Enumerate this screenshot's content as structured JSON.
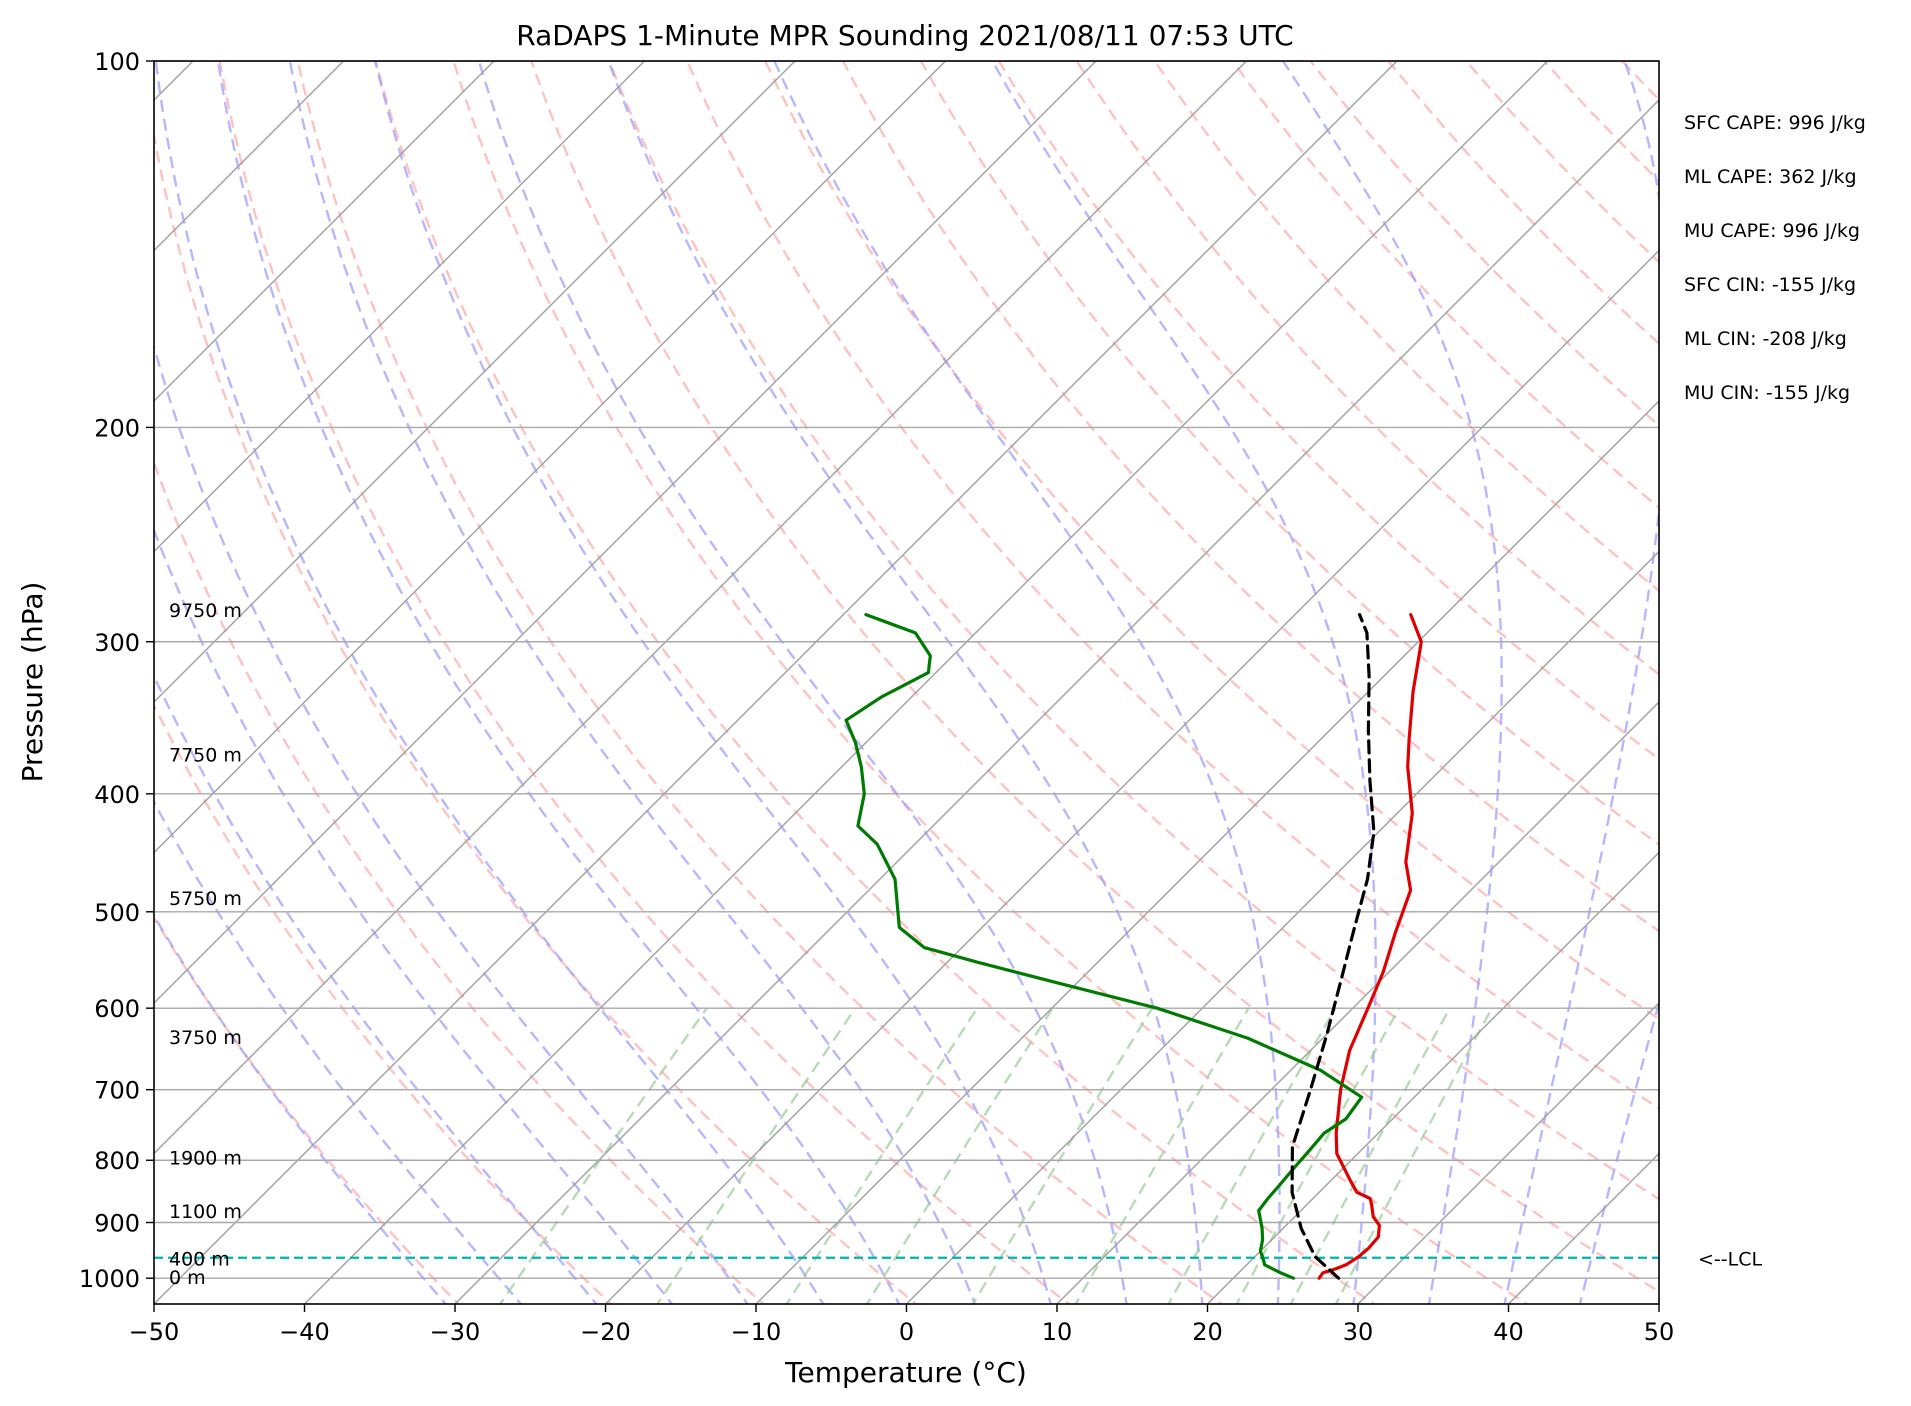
{
  "chart_data": {
    "type": "line",
    "title": "RaDAPS 1-Minute MPR Sounding 2021/08/11 07:53 UTC",
    "xlabel": "Temperature (°C)",
    "ylabel": "Pressure (hPa)",
    "xlim": [
      -50,
      50
    ],
    "ylim": [
      1050,
      100
    ],
    "y_scale": "log",
    "x_ticks": [
      {
        "value": -50,
        "label": "−50"
      },
      {
        "value": -40,
        "label": "−40"
      },
      {
        "value": -30,
        "label": "−30"
      },
      {
        "value": -20,
        "label": "−20"
      },
      {
        "value": -10,
        "label": "−10"
      },
      {
        "value": 0,
        "label": "0"
      },
      {
        "value": 10,
        "label": "10"
      },
      {
        "value": 20,
        "label": "20"
      },
      {
        "value": 30,
        "label": "30"
      },
      {
        "value": 40,
        "label": "40"
      },
      {
        "value": 50,
        "label": "50"
      }
    ],
    "y_ticks": [
      {
        "value": 100,
        "label": "100"
      },
      {
        "value": 200,
        "label": "200"
      },
      {
        "value": 300,
        "label": "300"
      },
      {
        "value": 400,
        "label": "400"
      },
      {
        "value": 500,
        "label": "500"
      },
      {
        "value": 600,
        "label": "600"
      },
      {
        "value": 700,
        "label": "700"
      },
      {
        "value": 800,
        "label": "800"
      },
      {
        "value": 900,
        "label": "900"
      },
      {
        "value": 1000,
        "label": "1000"
      }
    ],
    "grid": true,
    "series": [
      {
        "role": "temperature",
        "color": "#e00000",
        "style": "solid",
        "points": [
          [
            25.7,
            1000
          ],
          [
            25.6,
            990
          ],
          [
            26.2,
            982
          ],
          [
            26.6,
            975
          ],
          [
            26.9,
            960
          ],
          [
            27.0,
            945
          ],
          [
            26.9,
            925
          ],
          [
            26.2,
            905
          ],
          [
            25.2,
            890
          ],
          [
            24.3,
            870
          ],
          [
            23.8,
            860
          ],
          [
            22.5,
            850
          ],
          [
            21.2,
            830
          ],
          [
            18.6,
            790
          ],
          [
            17.2,
            760
          ],
          [
            14.6,
            700
          ],
          [
            12.6,
            650
          ],
          [
            11.0,
            600
          ],
          [
            9.6,
            560
          ],
          [
            7.8,
            520
          ],
          [
            6.0,
            480
          ],
          [
            3.8,
            455
          ],
          [
            1.0,
            415
          ],
          [
            -2.4,
            380
          ],
          [
            -4.2,
            360
          ],
          [
            -7.0,
            330
          ],
          [
            -9.8,
            300
          ],
          [
            -12.3,
            285
          ]
        ]
      },
      {
        "role": "dewpoint",
        "color": "#007a00",
        "style": "solid",
        "points": [
          [
            24.0,
            1000
          ],
          [
            22.8,
            990
          ],
          [
            21.2,
            975
          ],
          [
            20.5,
            960
          ],
          [
            20.0,
            950
          ],
          [
            19.4,
            930
          ],
          [
            18.6,
            910
          ],
          [
            17.2,
            880
          ],
          [
            17.0,
            860
          ],
          [
            16.9,
            840
          ],
          [
            16.8,
            825
          ],
          [
            16.7,
            810
          ],
          [
            16.6,
            790
          ],
          [
            16.4,
            760
          ],
          [
            16.9,
            740
          ],
          [
            16.5,
            710
          ],
          [
            12.0,
            675
          ],
          [
            5.0,
            635
          ],
          [
            -3.0,
            600
          ],
          [
            -11.0,
            573
          ],
          [
            -18.0,
            550
          ],
          [
            -22.5,
            535
          ],
          [
            -25.5,
            515
          ],
          [
            -29.0,
            470
          ],
          [
            -32.5,
            440
          ],
          [
            -35.0,
            425
          ],
          [
            -36.7,
            400
          ],
          [
            -38.7,
            380
          ],
          [
            -40.7,
            363
          ],
          [
            -42.8,
            348
          ],
          [
            -42.0,
            333
          ],
          [
            -40.5,
            318
          ],
          [
            -41.5,
            308
          ],
          [
            -44.0,
            295
          ],
          [
            -48.5,
            285
          ]
        ]
      },
      {
        "role": "parcel",
        "color": "#000000",
        "style": "dashed",
        "points": [
          [
            27.0,
            1000
          ],
          [
            24.0,
            960
          ],
          [
            21.2,
            910
          ],
          [
            18.2,
            850
          ],
          [
            15.2,
            780
          ],
          [
            12.6,
            700
          ],
          [
            10.0,
            630
          ],
          [
            7.4,
            570
          ],
          [
            5.0,
            520
          ],
          [
            2.4,
            470
          ],
          [
            -0.3,
            430
          ],
          [
            -4.0,
            390
          ],
          [
            -7.4,
            355
          ],
          [
            -11.0,
            320
          ],
          [
            -14.0,
            295
          ],
          [
            -15.7,
            285
          ]
        ]
      }
    ],
    "background_lines": {
      "dry_adiabats_color": "#ff9999",
      "moist_adiabats_color": "#9999ff",
      "mixing_ratio_color": "#99cc99",
      "isotherm_color": "#a0a0a0",
      "lcl_line_color": "#00b3b3"
    },
    "lcl_pressure": 962,
    "lcl_label": "<--LCL",
    "height_labels": [
      {
        "label": "9750 m",
        "pressure": 283
      },
      {
        "label": "7750 m",
        "pressure": 372
      },
      {
        "label": "5750 m",
        "pressure": 488
      },
      {
        "label": "3750 m",
        "pressure": 635
      },
      {
        "label": "1900 m",
        "pressure": 797
      },
      {
        "label": "1100 m",
        "pressure": 882
      },
      {
        "label": "400 m",
        "pressure": 965
      },
      {
        "label": "0 m",
        "pressure": 1000
      }
    ],
    "annotations": [
      "SFC CAPE: 996 J/kg",
      "ML CAPE: 362 J/kg",
      "MU CAPE: 996 J/kg",
      "SFC CIN: -155 J/kg",
      "ML CIN: -208 J/kg",
      "MU CIN: -155 J/kg"
    ]
  }
}
